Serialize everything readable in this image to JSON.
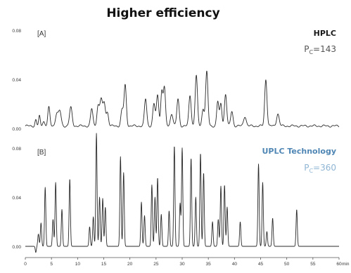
{
  "title": "Higher efficiency",
  "x_unit": "min",
  "x_ticks": [
    "0",
    "5",
    "10",
    "15",
    "20",
    "25",
    "30",
    "35",
    "40",
    "45",
    "50",
    "55",
    "60"
  ],
  "panels": [
    {
      "tag": "[A]",
      "technology": "HPLC",
      "pc_prefix": "P",
      "pc_sub": "C",
      "pc_value": "=143",
      "y_ticks": [
        "0.08",
        "0.04",
        "0.00"
      ]
    },
    {
      "tag": "[B]",
      "technology": "UPLC Technology",
      "pc_prefix": "P",
      "pc_sub": "C",
      "pc_value": "=360",
      "y_ticks": [
        "0.08",
        "0.04",
        "0.00"
      ]
    }
  ],
  "colors": {
    "trace": "#2a2a2a",
    "uplc_label": "#4f86b4",
    "uplc_pc": "#8fb5d4"
  },
  "chart_data": [
    {
      "type": "line",
      "panel": "A",
      "x_range": [
        0,
        60
      ],
      "ylim": [
        0,
        0.08
      ],
      "baseline": 0.002,
      "peaks": [
        {
          "x": 2.0,
          "y": 0.005,
          "w": 0.15
        },
        {
          "x": 2.7,
          "y": 0.008,
          "w": 0.15
        },
        {
          "x": 3.5,
          "y": 0.004,
          "w": 0.2
        },
        {
          "x": 4.5,
          "y": 0.015,
          "w": 0.2
        },
        {
          "x": 6.0,
          "y": 0.01,
          "w": 0.25
        },
        {
          "x": 6.6,
          "y": 0.012,
          "w": 0.25
        },
        {
          "x": 8.7,
          "y": 0.015,
          "w": 0.25
        },
        {
          "x": 12.7,
          "y": 0.014,
          "w": 0.22
        },
        {
          "x": 13.9,
          "y": 0.016,
          "w": 0.22
        },
        {
          "x": 14.5,
          "y": 0.022,
          "w": 0.25
        },
        {
          "x": 15.1,
          "y": 0.018,
          "w": 0.22
        },
        {
          "x": 15.7,
          "y": 0.011,
          "w": 0.22
        },
        {
          "x": 18.5,
          "y": 0.013,
          "w": 0.22
        },
        {
          "x": 19.1,
          "y": 0.033,
          "w": 0.22
        },
        {
          "x": 23.0,
          "y": 0.022,
          "w": 0.22
        },
        {
          "x": 24.6,
          "y": 0.018,
          "w": 0.22
        },
        {
          "x": 25.3,
          "y": 0.025,
          "w": 0.22
        },
        {
          "x": 26.1,
          "y": 0.028,
          "w": 0.2
        },
        {
          "x": 26.6,
          "y": 0.031,
          "w": 0.2
        },
        {
          "x": 28.0,
          "y": 0.01,
          "w": 0.25
        },
        {
          "x": 29.2,
          "y": 0.022,
          "w": 0.22
        },
        {
          "x": 31.5,
          "y": 0.025,
          "w": 0.22
        },
        {
          "x": 32.7,
          "y": 0.041,
          "w": 0.22
        },
        {
          "x": 34.0,
          "y": 0.014,
          "w": 0.22
        },
        {
          "x": 34.7,
          "y": 0.044,
          "w": 0.22
        },
        {
          "x": 36.8,
          "y": 0.02,
          "w": 0.2
        },
        {
          "x": 37.4,
          "y": 0.018,
          "w": 0.2
        },
        {
          "x": 38.3,
          "y": 0.026,
          "w": 0.22
        },
        {
          "x": 39.5,
          "y": 0.012,
          "w": 0.22
        },
        {
          "x": 42.0,
          "y": 0.008,
          "w": 0.25
        },
        {
          "x": 46.0,
          "y": 0.038,
          "w": 0.22
        },
        {
          "x": 48.3,
          "y": 0.01,
          "w": 0.25
        }
      ]
    },
    {
      "type": "line",
      "panel": "B",
      "x_range": [
        0,
        60
      ],
      "ylim": [
        0,
        0.08
      ],
      "baseline": 0.0,
      "peaks": [
        {
          "x": 2.0,
          "y": -0.005,
          "w": 0.1
        },
        {
          "x": 2.5,
          "y": 0.01,
          "w": 0.12
        },
        {
          "x": 3.0,
          "y": 0.019,
          "w": 0.12
        },
        {
          "x": 3.8,
          "y": 0.048,
          "w": 0.12
        },
        {
          "x": 5.3,
          "y": 0.022,
          "w": 0.12
        },
        {
          "x": 5.8,
          "y": 0.052,
          "w": 0.12
        },
        {
          "x": 7.0,
          "y": 0.03,
          "w": 0.12
        },
        {
          "x": 8.5,
          "y": 0.055,
          "w": 0.12
        },
        {
          "x": 12.3,
          "y": 0.016,
          "w": 0.12
        },
        {
          "x": 13.0,
          "y": 0.024,
          "w": 0.12
        },
        {
          "x": 13.6,
          "y": 0.092,
          "w": 0.12
        },
        {
          "x": 14.2,
          "y": 0.04,
          "w": 0.12
        },
        {
          "x": 14.8,
          "y": 0.039,
          "w": 0.12
        },
        {
          "x": 15.3,
          "y": 0.032,
          "w": 0.12
        },
        {
          "x": 18.2,
          "y": 0.073,
          "w": 0.12
        },
        {
          "x": 18.8,
          "y": 0.06,
          "w": 0.12
        },
        {
          "x": 22.2,
          "y": 0.036,
          "w": 0.12
        },
        {
          "x": 22.8,
          "y": 0.025,
          "w": 0.12
        },
        {
          "x": 24.2,
          "y": 0.05,
          "w": 0.12
        },
        {
          "x": 24.8,
          "y": 0.04,
          "w": 0.12
        },
        {
          "x": 25.3,
          "y": 0.056,
          "w": 0.12
        },
        {
          "x": 26.0,
          "y": 0.026,
          "w": 0.12
        },
        {
          "x": 27.5,
          "y": 0.029,
          "w": 0.12
        },
        {
          "x": 28.5,
          "y": 0.082,
          "w": 0.12
        },
        {
          "x": 29.6,
          "y": 0.035,
          "w": 0.12
        },
        {
          "x": 30.0,
          "y": 0.08,
          "w": 0.12
        },
        {
          "x": 31.7,
          "y": 0.072,
          "w": 0.12
        },
        {
          "x": 32.6,
          "y": 0.04,
          "w": 0.12
        },
        {
          "x": 33.5,
          "y": 0.076,
          "w": 0.12
        },
        {
          "x": 34.1,
          "y": 0.06,
          "w": 0.12
        },
        {
          "x": 35.8,
          "y": 0.02,
          "w": 0.12
        },
        {
          "x": 36.9,
          "y": 0.022,
          "w": 0.12
        },
        {
          "x": 37.4,
          "y": 0.049,
          "w": 0.12
        },
        {
          "x": 38.1,
          "y": 0.05,
          "w": 0.12
        },
        {
          "x": 38.6,
          "y": 0.032,
          "w": 0.12
        },
        {
          "x": 41.1,
          "y": 0.02,
          "w": 0.12
        },
        {
          "x": 44.6,
          "y": 0.067,
          "w": 0.12
        },
        {
          "x": 45.4,
          "y": 0.052,
          "w": 0.12
        },
        {
          "x": 46.2,
          "y": 0.012,
          "w": 0.12
        },
        {
          "x": 47.3,
          "y": 0.023,
          "w": 0.12
        },
        {
          "x": 51.9,
          "y": 0.03,
          "w": 0.12
        }
      ]
    }
  ]
}
